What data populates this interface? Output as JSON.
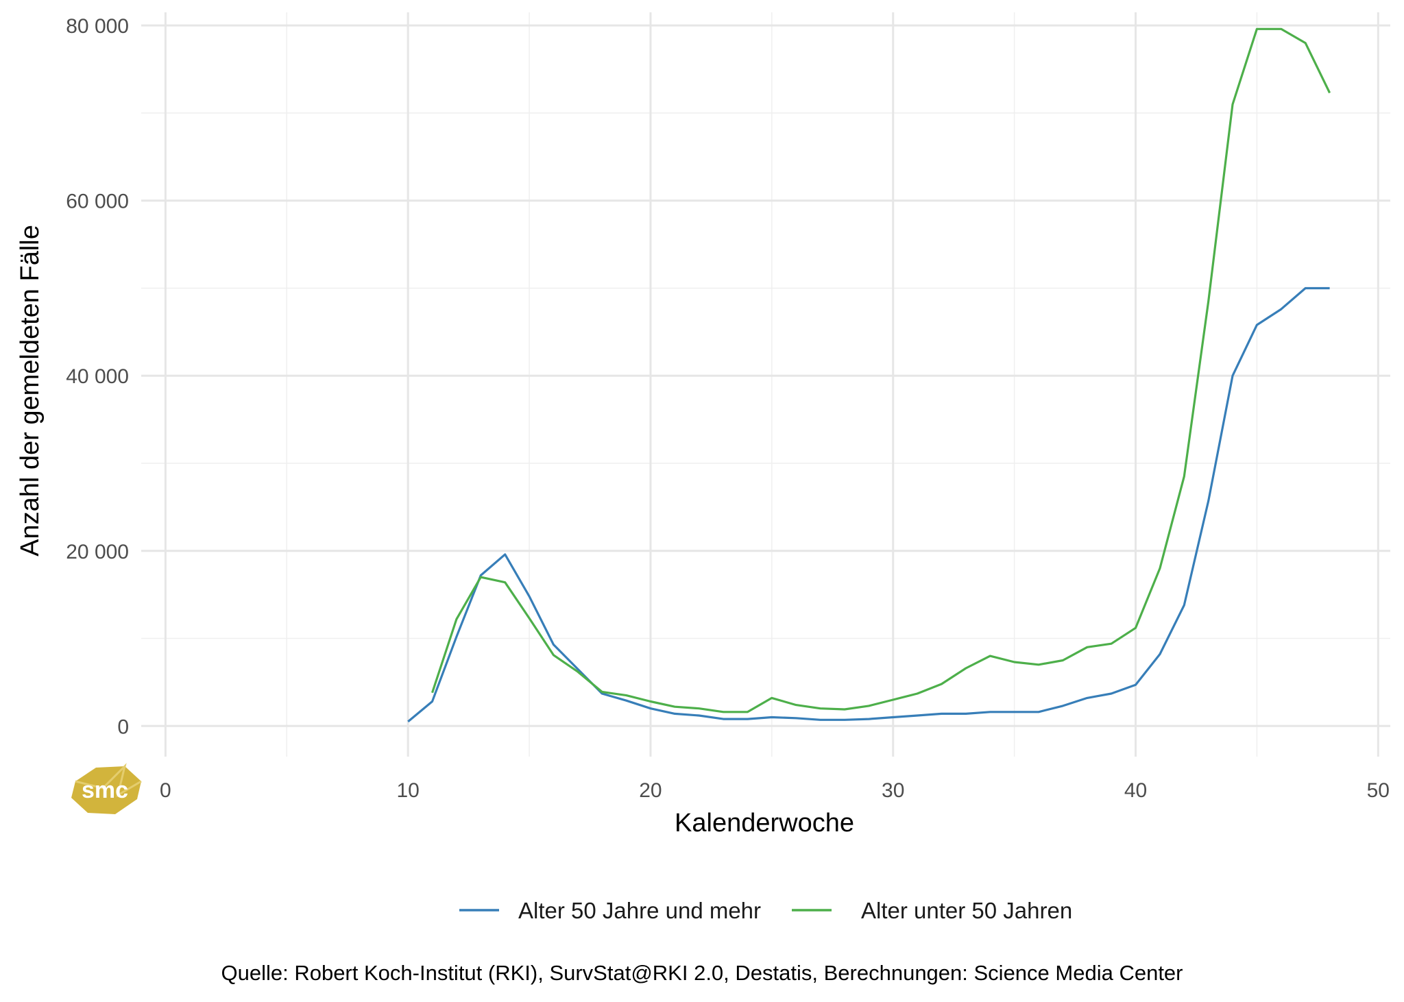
{
  "chart_data": {
    "type": "line",
    "xlabel": "Kalenderwoche",
    "ylabel": "Anzahl der gemeldeten Fälle",
    "xlim": [
      -1,
      50.5
    ],
    "ylim": [
      -3500,
      81500
    ],
    "x_ticks": [
      0,
      10,
      20,
      30,
      40,
      50
    ],
    "y_ticks": [
      0,
      20000,
      40000,
      60000,
      80000
    ],
    "x_tick_labels": [
      "0",
      "10",
      "20",
      "30",
      "40",
      "50"
    ],
    "y_tick_labels": [
      "0",
      "20 000",
      "40 000",
      "60 000",
      "80 000"
    ],
    "grid": true,
    "legend_position": "bottom",
    "series": [
      {
        "name": "Alter 50 Jahre und mehr",
        "color": "#377eb8",
        "x": [
          10,
          11,
          12,
          13,
          14,
          15,
          16,
          17,
          18,
          19,
          20,
          21,
          22,
          23,
          24,
          25,
          26,
          27,
          28,
          29,
          30,
          31,
          32,
          33,
          34,
          35,
          36,
          37,
          38,
          39,
          40,
          41,
          42,
          43,
          44,
          45,
          46,
          47,
          48
        ],
        "values": [
          500,
          2800,
          10200,
          17200,
          19600,
          14800,
          9300,
          6500,
          3700,
          2900,
          2000,
          1400,
          1200,
          800,
          800,
          1000,
          900,
          700,
          700,
          800,
          1000,
          1200,
          1400,
          1400,
          1600,
          1600,
          1600,
          2300,
          3200,
          3700,
          4700,
          8200,
          13800,
          25700,
          40000,
          45800,
          47600,
          50000,
          50000
        ]
      },
      {
        "name": "Alter unter 50 Jahren",
        "color": "#4daf4a",
        "x": [
          11,
          12,
          13,
          14,
          15,
          16,
          17,
          18,
          19,
          20,
          21,
          22,
          23,
          24,
          25,
          26,
          27,
          28,
          29,
          30,
          31,
          32,
          33,
          34,
          35,
          36,
          37,
          38,
          39,
          40,
          41,
          42,
          43,
          44,
          45,
          46,
          47,
          48
        ],
        "values": [
          3800,
          12200,
          17000,
          16400,
          12300,
          8100,
          6200,
          3900,
          3500,
          2800,
          2200,
          2000,
          1600,
          1600,
          3200,
          2400,
          2000,
          1900,
          2300,
          3000,
          3700,
          4800,
          6600,
          8000,
          7300,
          7000,
          7500,
          9000,
          9400,
          11200,
          18000,
          28500,
          48500,
          71000,
          79600,
          79600,
          78000,
          72300
        ]
      }
    ],
    "caption": "Quelle: Robert Koch-Institut (RKI), SurvStat@RKI 2.0, Destatis, Berechnungen: Science Media Center"
  },
  "logo": {
    "text": "smc",
    "color": "#d2b43c"
  }
}
